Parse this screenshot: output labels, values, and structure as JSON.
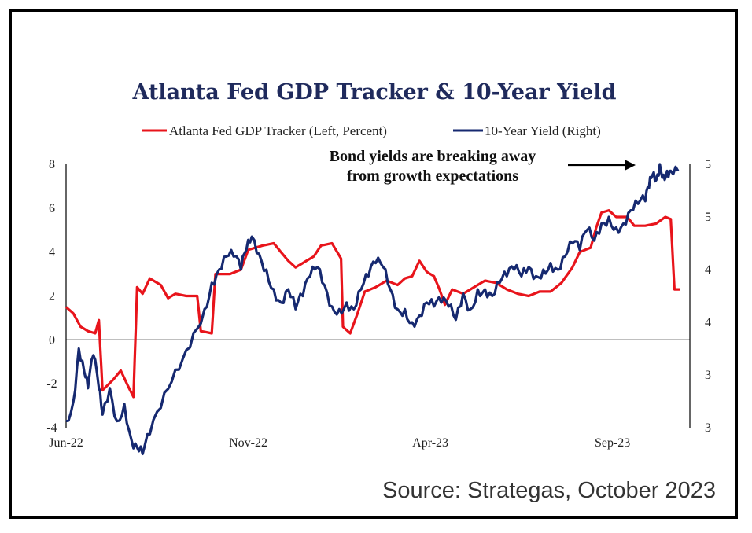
{
  "chart_data": {
    "type": "line",
    "title": "Atlanta Fed GDP Tracker & 10-Year Yield",
    "x_tick_labels": [
      "Jun-22",
      "Nov-22",
      "Apr-23",
      "Sep-23"
    ],
    "x_tick_positions": [
      0,
      5,
      10,
      15
    ],
    "x_range": [
      0,
      16.8
    ],
    "left_axis": {
      "ticks": [
        "-4",
        "-2",
        "0",
        "2",
        "4",
        "6",
        "8"
      ],
      "range": [
        -4,
        8
      ]
    },
    "right_axis": {
      "ticks": [
        "3",
        "3",
        "4",
        "4",
        "5",
        "5"
      ],
      "range": [
        3.0,
        5.0
      ]
    },
    "zero_line": 0,
    "legend_position": "top",
    "annotation": [
      "Bond yields are breaking away",
      "from growth expectations"
    ],
    "series": [
      {
        "name": "Atlanta Fed GDP Tracker (Left, Percent)",
        "axis": "left",
        "color": "#e8141b",
        "points": [
          [
            0.0,
            1.5
          ],
          [
            0.2,
            1.2
          ],
          [
            0.4,
            0.6
          ],
          [
            0.6,
            0.4
          ],
          [
            0.8,
            0.3
          ],
          [
            0.9,
            0.9
          ],
          [
            1.0,
            -2.3
          ],
          [
            1.3,
            -1.8
          ],
          [
            1.5,
            -1.4
          ],
          [
            1.7,
            -2.1
          ],
          [
            1.85,
            -2.6
          ],
          [
            1.95,
            2.4
          ],
          [
            2.1,
            2.1
          ],
          [
            2.3,
            2.8
          ],
          [
            2.6,
            2.5
          ],
          [
            2.8,
            1.9
          ],
          [
            3.0,
            2.1
          ],
          [
            3.3,
            2.0
          ],
          [
            3.6,
            2.0
          ],
          [
            3.7,
            0.4
          ],
          [
            4.0,
            0.3
          ],
          [
            4.1,
            3.0
          ],
          [
            4.5,
            3.0
          ],
          [
            4.8,
            3.2
          ],
          [
            5.0,
            4.1
          ],
          [
            5.4,
            4.3
          ],
          [
            5.7,
            4.4
          ],
          [
            5.9,
            4.0
          ],
          [
            6.1,
            3.6
          ],
          [
            6.3,
            3.3
          ],
          [
            6.5,
            3.5
          ],
          [
            6.8,
            3.8
          ],
          [
            7.0,
            4.3
          ],
          [
            7.3,
            4.4
          ],
          [
            7.55,
            3.7
          ],
          [
            7.6,
            0.6
          ],
          [
            7.8,
            0.3
          ],
          [
            8.0,
            1.2
          ],
          [
            8.2,
            2.2
          ],
          [
            8.5,
            2.4
          ],
          [
            8.8,
            2.7
          ],
          [
            9.1,
            2.5
          ],
          [
            9.3,
            2.8
          ],
          [
            9.5,
            2.9
          ],
          [
            9.7,
            3.6
          ],
          [
            9.9,
            3.1
          ],
          [
            10.1,
            2.9
          ],
          [
            10.25,
            2.3
          ],
          [
            10.4,
            1.6
          ],
          [
            10.6,
            2.3
          ],
          [
            10.9,
            2.1
          ],
          [
            11.2,
            2.4
          ],
          [
            11.5,
            2.7
          ],
          [
            11.8,
            2.6
          ],
          [
            12.1,
            2.3
          ],
          [
            12.4,
            2.1
          ],
          [
            12.7,
            2.0
          ],
          [
            13.0,
            2.2
          ],
          [
            13.3,
            2.2
          ],
          [
            13.6,
            2.6
          ],
          [
            13.9,
            3.3
          ],
          [
            14.1,
            4.0
          ],
          [
            14.4,
            4.2
          ],
          [
            14.55,
            5.1
          ],
          [
            14.7,
            5.8
          ],
          [
            14.9,
            5.9
          ],
          [
            15.1,
            5.6
          ],
          [
            15.4,
            5.6
          ],
          [
            15.6,
            5.2
          ],
          [
            15.9,
            5.2
          ],
          [
            16.2,
            5.3
          ],
          [
            16.45,
            5.6
          ],
          [
            16.6,
            5.5
          ],
          [
            16.7,
            2.3
          ],
          [
            16.85,
            2.3
          ]
        ]
      },
      {
        "name": "10-Year Yield (Right)",
        "axis": "right",
        "color": "#162970",
        "points": [
          [
            0.0,
            3.05
          ],
          [
            0.2,
            3.2
          ],
          [
            0.35,
            3.6
          ],
          [
            0.5,
            3.42
          ],
          [
            0.6,
            3.3
          ],
          [
            0.75,
            3.55
          ],
          [
            0.9,
            3.3
          ],
          [
            1.0,
            3.1
          ],
          [
            1.2,
            3.3
          ],
          [
            1.4,
            3.05
          ],
          [
            1.6,
            3.18
          ],
          [
            1.8,
            2.9
          ],
          [
            1.95,
            2.85
          ],
          [
            2.1,
            2.8
          ],
          [
            2.3,
            2.95
          ],
          [
            2.6,
            3.15
          ],
          [
            2.9,
            3.35
          ],
          [
            3.2,
            3.52
          ],
          [
            3.5,
            3.72
          ],
          [
            3.8,
            3.9
          ],
          [
            4.0,
            4.1
          ],
          [
            4.2,
            4.2
          ],
          [
            4.4,
            4.3
          ],
          [
            4.6,
            4.3
          ],
          [
            4.8,
            4.2
          ],
          [
            4.95,
            4.35
          ],
          [
            5.1,
            4.45
          ],
          [
            5.3,
            4.32
          ],
          [
            5.5,
            4.2
          ],
          [
            5.7,
            4.05
          ],
          [
            5.9,
            3.95
          ],
          [
            6.1,
            4.05
          ],
          [
            6.3,
            3.9
          ],
          [
            6.5,
            4.0
          ],
          [
            6.7,
            4.15
          ],
          [
            6.9,
            4.22
          ],
          [
            7.1,
            4.08
          ],
          [
            7.3,
            3.92
          ],
          [
            7.5,
            3.9
          ],
          [
            7.7,
            3.95
          ],
          [
            7.9,
            3.9
          ],
          [
            8.1,
            4.05
          ],
          [
            8.3,
            4.15
          ],
          [
            8.5,
            4.25
          ],
          [
            8.7,
            4.22
          ],
          [
            8.9,
            4.05
          ],
          [
            9.1,
            3.9
          ],
          [
            9.3,
            3.9
          ],
          [
            9.5,
            3.8
          ],
          [
            9.7,
            3.85
          ],
          [
            9.9,
            3.95
          ],
          [
            10.1,
            3.92
          ],
          [
            10.3,
            3.95
          ],
          [
            10.5,
            3.92
          ],
          [
            10.7,
            3.82
          ],
          [
            10.9,
            4.02
          ],
          [
            11.1,
            3.9
          ],
          [
            11.3,
            4.05
          ],
          [
            11.5,
            4.05
          ],
          [
            11.7,
            4.0
          ],
          [
            11.9,
            4.1
          ],
          [
            12.1,
            4.15
          ],
          [
            12.3,
            4.2
          ],
          [
            12.5,
            4.15
          ],
          [
            12.7,
            4.22
          ],
          [
            12.9,
            4.15
          ],
          [
            13.1,
            4.2
          ],
          [
            13.3,
            4.25
          ],
          [
            13.5,
            4.2
          ],
          [
            13.7,
            4.3
          ],
          [
            13.9,
            4.4
          ],
          [
            14.1,
            4.35
          ],
          [
            14.3,
            4.5
          ],
          [
            14.5,
            4.42
          ],
          [
            14.7,
            4.55
          ],
          [
            14.9,
            4.6
          ],
          [
            15.1,
            4.52
          ],
          [
            15.3,
            4.55
          ],
          [
            15.5,
            4.65
          ],
          [
            15.7,
            4.7
          ],
          [
            15.9,
            4.72
          ],
          [
            16.0,
            4.82
          ],
          [
            16.1,
            4.92
          ],
          [
            16.2,
            4.88
          ],
          [
            16.3,
            5.0
          ],
          [
            16.4,
            4.92
          ],
          [
            16.5,
            4.95
          ],
          [
            16.6,
            4.95
          ],
          [
            16.8,
            4.95
          ]
        ]
      }
    ]
  },
  "source": "Source:  Strategas, October 2023"
}
